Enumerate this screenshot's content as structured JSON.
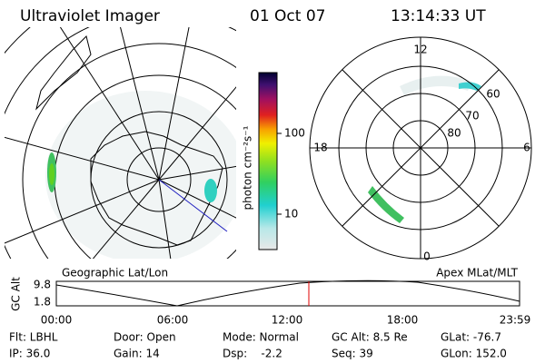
{
  "header": {
    "title": "Ultraviolet Imager",
    "date": "01 Oct 07",
    "time": "13:14:33 UT"
  },
  "left_map": {
    "label": "Geographic Lat/Lon"
  },
  "colorbar": {
    "label": "photon cm⁻²s⁻¹",
    "ticks": [
      "100",
      "10"
    ]
  },
  "polar": {
    "label": "Apex MLat/MLT",
    "mlt_labels": [
      "12",
      "18",
      "6",
      "0"
    ],
    "mlat_labels": [
      "60",
      "70",
      "80"
    ]
  },
  "altitude_plot": {
    "ylabel": "GC Alt",
    "yticks": [
      "9.8",
      "1.8"
    ],
    "xticks": [
      "00:00",
      "06:00",
      "12:00",
      "18:00",
      "23:59"
    ]
  },
  "status": {
    "rows": [
      [
        "Flt: LBHL",
        "Door: Open",
        "Mode: Normal",
        "GC Alt: 8.5 Re",
        "GLat: -76.7"
      ],
      [
        "IP: 36.0",
        "Gain: 14",
        "Dsp:    -2.2",
        "Seq: 39",
        "GLon: 152.0"
      ]
    ]
  }
}
